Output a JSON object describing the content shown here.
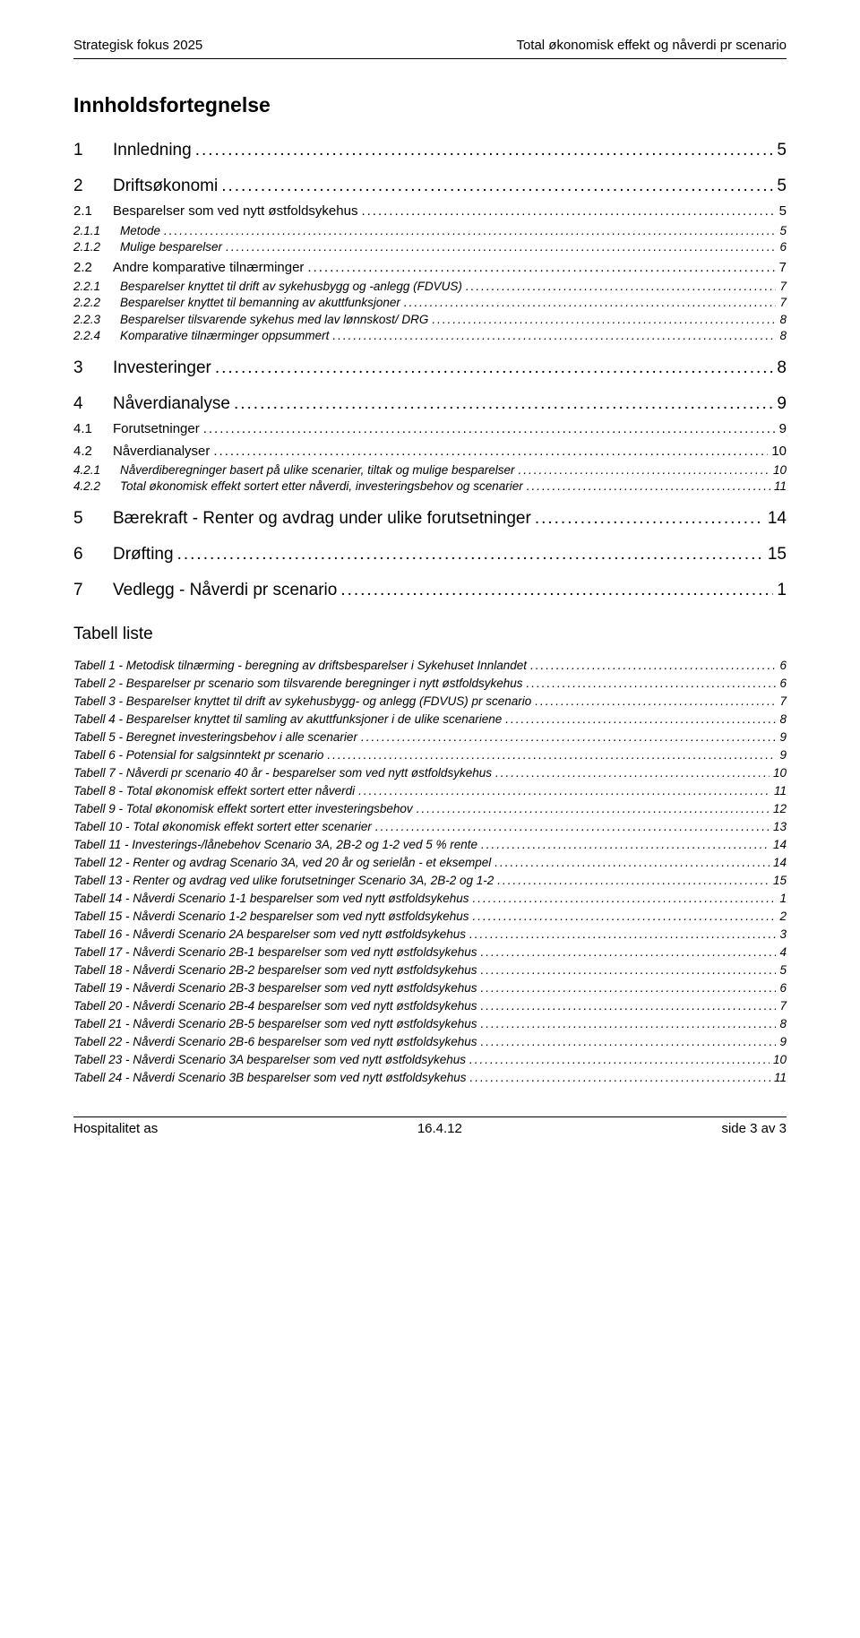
{
  "header": {
    "left": "Strategisk fokus 2025",
    "right": "Total økonomisk effekt og nåverdi pr scenario"
  },
  "tocTitle": "Innholdsfortegnelse",
  "toc": [
    {
      "lvl": 1,
      "num": "1",
      "label": "Innledning",
      "page": "5"
    },
    {
      "lvl": 1,
      "num": "2",
      "label": "Driftsøkonomi",
      "page": "5"
    },
    {
      "lvl": 2,
      "num": "2.1",
      "label": "Besparelser som ved nytt østfoldsykehus",
      "page": "5"
    },
    {
      "lvl": 3,
      "num": "2.1.1",
      "label": "Metode",
      "page": "5"
    },
    {
      "lvl": 3,
      "num": "2.1.2",
      "label": "Mulige besparelser",
      "page": "6"
    },
    {
      "lvl": 2,
      "num": "2.2",
      "label": "Andre komparative tilnærminger",
      "page": "7"
    },
    {
      "lvl": 3,
      "num": "2.2.1",
      "label": "Besparelser knyttet til drift av sykehusbygg og -anlegg (FDVUS)",
      "page": "7"
    },
    {
      "lvl": 3,
      "num": "2.2.2",
      "label": "Besparelser knyttet til bemanning av akuttfunksjoner",
      "page": "7"
    },
    {
      "lvl": 3,
      "num": "2.2.3",
      "label": "Besparelser tilsvarende sykehus med lav lønnskost/ DRG",
      "page": "8"
    },
    {
      "lvl": 3,
      "num": "2.2.4",
      "label": "Komparative tilnærminger oppsummert",
      "page": "8"
    },
    {
      "lvl": 1,
      "num": "3",
      "label": "Investeringer",
      "page": "8"
    },
    {
      "lvl": 1,
      "num": "4",
      "label": "Nåverdianalyse",
      "page": "9"
    },
    {
      "lvl": 2,
      "num": "4.1",
      "label": "Forutsetninger",
      "page": "9"
    },
    {
      "lvl": 2,
      "num": "4.2",
      "label": "Nåverdianalyser",
      "page": "10"
    },
    {
      "lvl": 3,
      "num": "4.2.1",
      "label": "Nåverdiberegninger basert på ulike scenarier, tiltak og mulige besparelser",
      "page": "10"
    },
    {
      "lvl": 3,
      "num": "4.2.2",
      "label": "Total økonomisk effekt sortert etter nåverdi, investeringsbehov og scenarier",
      "page": "11"
    },
    {
      "lvl": 1,
      "num": "5",
      "label": "Bærekraft - Renter og avdrag under ulike forutsetninger",
      "page": "14"
    },
    {
      "lvl": 1,
      "num": "6",
      "label": "Drøfting",
      "page": "15"
    },
    {
      "lvl": 1,
      "num": "7",
      "label": "Vedlegg - Nåverdi pr scenario",
      "page": "1"
    }
  ],
  "tablistTitle": "Tabell liste",
  "tables": [
    {
      "label": "Tabell 1 - Metodisk tilnærming - beregning av driftsbesparelser i Sykehuset Innlandet",
      "page": "6"
    },
    {
      "label": "Tabell 2 - Besparelser pr scenario som tilsvarende beregninger i nytt østfoldsykehus",
      "page": "6"
    },
    {
      "label": "Tabell 3 - Besparelser knyttet til drift av sykehusbygg- og anlegg (FDVUS) pr scenario",
      "page": "7"
    },
    {
      "label": "Tabell 4 - Besparelser knyttet til samling av akuttfunksjoner i de ulike scenariene",
      "page": "8"
    },
    {
      "label": "Tabell 5 - Beregnet investeringsbehov i alle scenarier",
      "page": "9"
    },
    {
      "label": "Tabell 6 - Potensial for salgsinntekt pr scenario",
      "page": "9"
    },
    {
      "label": "Tabell 7 - Nåverdi pr scenario 40 år - besparelser som ved nytt østfoldsykehus",
      "page": "10"
    },
    {
      "label": "Tabell 8 - Total økonomisk effekt sortert etter nåverdi",
      "page": "11"
    },
    {
      "label": "Tabell 9 - Total økonomisk effekt sortert etter investeringsbehov",
      "page": "12"
    },
    {
      "label": "Tabell 10 - Total økonomisk effekt sortert etter scenarier",
      "page": "13"
    },
    {
      "label": "Tabell 11 - Investerings-/lånebehov Scenario 3A, 2B-2 og 1-2 ved 5 % rente",
      "page": "14"
    },
    {
      "label": "Tabell 12 - Renter og avdrag Scenario 3A, ved 20 år og serielån - et eksempel",
      "page": "14"
    },
    {
      "label": "Tabell 13 - Renter og avdrag ved ulike forutsetninger Scenario 3A, 2B-2 og 1-2",
      "page": "15"
    },
    {
      "label": "Tabell 14 - Nåverdi Scenario 1-1 besparelser som ved nytt østfoldsykehus",
      "page": "1"
    },
    {
      "label": "Tabell 15 - Nåverdi Scenario 1-2 besparelser som ved nytt østfoldsykehus",
      "page": "2"
    },
    {
      "label": "Tabell 16 - Nåverdi Scenario 2A besparelser som ved nytt østfoldsykehus",
      "page": "3"
    },
    {
      "label": "Tabell 17 - Nåverdi Scenario 2B-1 besparelser som ved nytt østfoldsykehus",
      "page": "4"
    },
    {
      "label": "Tabell 18 - Nåverdi Scenario 2B-2 besparelser som ved nytt østfoldsykehus",
      "page": "5"
    },
    {
      "label": "Tabell 19 - Nåverdi Scenario 2B-3 besparelser som ved nytt østfoldsykehus",
      "page": "6"
    },
    {
      "label": "Tabell 20 - Nåverdi Scenario 2B-4 besparelser som ved nytt østfoldsykehus",
      "page": "7"
    },
    {
      "label": "Tabell 21 - Nåverdi Scenario 2B-5 besparelser som ved nytt østfoldsykehus",
      "page": "8"
    },
    {
      "label": "Tabell 22 - Nåverdi Scenario 2B-6 besparelser som ved nytt østfoldsykehus",
      "page": "9"
    },
    {
      "label": "Tabell 23 - Nåverdi Scenario 3A besparelser som ved nytt østfoldsykehus",
      "page": "10"
    },
    {
      "label": "Tabell 24 - Nåverdi Scenario 3B besparelser som ved nytt østfoldsykehus",
      "page": "11"
    }
  ],
  "footer": {
    "left": "Hospitalitet as",
    "center": "16.4.12",
    "right": "side 3 av 3"
  }
}
